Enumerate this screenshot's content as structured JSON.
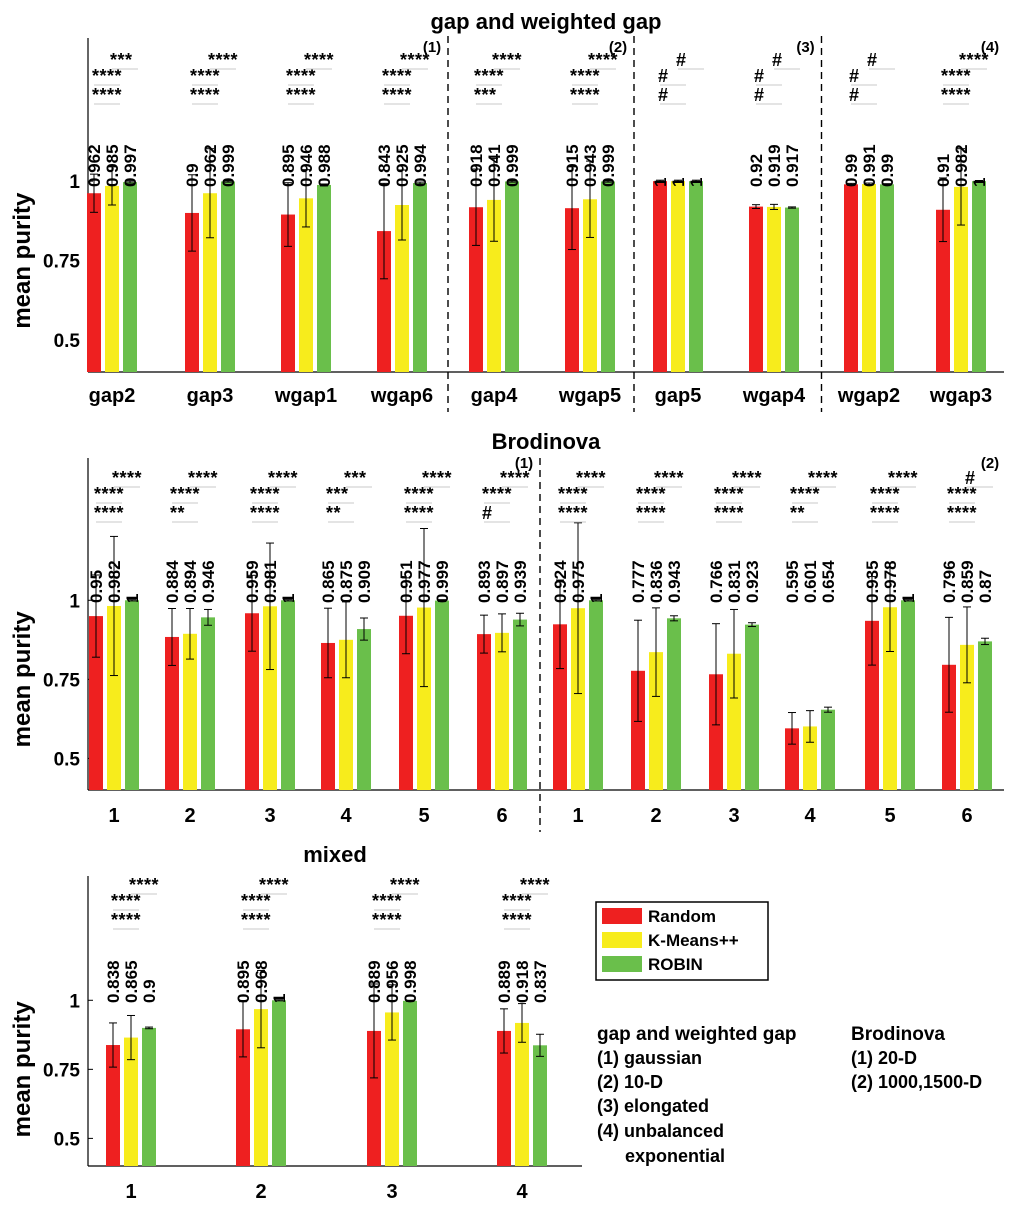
{
  "colors": {
    "random": "#ee2020",
    "kmeans": "#f7ec1c",
    "robin": "#6abf4b",
    "axis": "#000000",
    "sigline": "#c8c8c8"
  },
  "chart_data": [
    {
      "type": "bar",
      "title": "gap and weighted gap",
      "ylabel": "mean purity",
      "ylim": [
        0.4,
        1.45
      ],
      "yticks": [
        0.5,
        0.75,
        1
      ],
      "ytick_labels": [
        "0.5",
        "0.75",
        "1"
      ],
      "series_names": [
        "Random",
        "K-Means++",
        "ROBIN"
      ],
      "dividers_after": [
        3,
        5,
        7
      ],
      "group_labels": [
        "(1)",
        "(2)",
        "(3)",
        "(4)"
      ],
      "categories": [
        "gap2",
        "gap3",
        "wgap1",
        "wgap6",
        "gap4",
        "wgap5",
        "gap5",
        "wgap4",
        "wgap2",
        "wgap3"
      ],
      "values": [
        [
          0.962,
          0.985,
          0.997
        ],
        [
          0.9,
          0.962,
          0.999
        ],
        [
          0.895,
          0.946,
          0.988
        ],
        [
          0.843,
          0.925,
          0.994
        ],
        [
          0.918,
          0.941,
          0.999
        ],
        [
          0.915,
          0.943,
          0.999
        ],
        [
          1,
          1,
          1
        ],
        [
          0.92,
          0.919,
          0.917
        ],
        [
          0.99,
          0.991,
          0.99
        ],
        [
          0.91,
          0.982,
          1
        ]
      ],
      "labels": [
        [
          "0.962",
          "0.985",
          "0.997"
        ],
        [
          "0.9",
          "0.962",
          "0.999"
        ],
        [
          "0.895",
          "0.946",
          "0.988"
        ],
        [
          "0.843",
          "0.925",
          "0.994"
        ],
        [
          "0.918",
          "0.941",
          "0.999"
        ],
        [
          "0.915",
          "0.943",
          "0.999"
        ],
        [
          "1",
          "1",
          "1"
        ],
        [
          "0.92",
          "0.919",
          "0.917"
        ],
        [
          "0.99",
          "0.991",
          "0.99"
        ],
        [
          "0.91",
          "0.982",
          "1"
        ]
      ],
      "errors": [
        [
          0.06,
          0.06,
          0.003
        ],
        [
          0.12,
          0.14,
          0.002
        ],
        [
          0.1,
          0.09,
          0.003
        ],
        [
          0.15,
          0.11,
          0.003
        ],
        [
          0.12,
          0.13,
          0.002
        ],
        [
          0.13,
          0.12,
          0.002
        ],
        [
          0.003,
          0.003,
          0.003
        ],
        [
          0.006,
          0.008,
          0.002
        ],
        [
          0.003,
          0.003,
          0.002
        ],
        [
          0.1,
          0.12,
          0.002
        ]
      ],
      "significance": [
        [
          "****",
          "****",
          "***"
        ],
        [
          "****",
          "****",
          "****"
        ],
        [
          "****",
          "****",
          "****"
        ],
        [
          "****",
          "****",
          "****"
        ],
        [
          "***",
          "****",
          "****"
        ],
        [
          "****",
          "****",
          "****"
        ],
        [
          "#",
          "#",
          "#"
        ],
        [
          "#",
          "#",
          "#"
        ],
        [
          "#",
          "#",
          "#"
        ],
        [
          "****",
          "****",
          "****"
        ]
      ]
    },
    {
      "type": "bar",
      "title": "Brodinova",
      "ylabel": "mean purity",
      "ylim": [
        0.4,
        1.45
      ],
      "yticks": [
        0.5,
        0.75,
        1
      ],
      "ytick_labels": [
        "0.5",
        "0.75",
        "1"
      ],
      "series_names": [
        "Random",
        "K-Means++",
        "ROBIN"
      ],
      "dividers_after": [
        5
      ],
      "group_labels": [
        "(1)",
        "(2)"
      ],
      "categories": [
        "1",
        "2",
        "3",
        "4",
        "5",
        "6",
        "1",
        "2",
        "3",
        "4",
        "5",
        "6"
      ],
      "values": [
        [
          0.95,
          0.982,
          1
        ],
        [
          0.884,
          0.894,
          0.946
        ],
        [
          0.959,
          0.981,
          1
        ],
        [
          0.865,
          0.875,
          0.909
        ],
        [
          0.951,
          0.977,
          0.999
        ],
        [
          0.893,
          0.897,
          0.939
        ],
        [
          0.924,
          0.975,
          1
        ],
        [
          0.777,
          0.836,
          0.943
        ],
        [
          0.766,
          0.831,
          0.923
        ],
        [
          0.595,
          0.601,
          0.654
        ],
        [
          0.935,
          0.978,
          1
        ],
        [
          0.796,
          0.859,
          0.87
        ]
      ],
      "labels": [
        [
          "0.95",
          "0.982",
          "1"
        ],
        [
          "0.884",
          "0.894",
          "0.946"
        ],
        [
          "0.959",
          "0.981",
          "1"
        ],
        [
          "0.865",
          "0.875",
          "0.909"
        ],
        [
          "0.951",
          "0.977",
          "0.999"
        ],
        [
          "0.893",
          "0.897",
          "0.939"
        ],
        [
          "0.924",
          "0.975",
          "1"
        ],
        [
          "0.777",
          "0.836",
          "0.943"
        ],
        [
          "0.766",
          "0.831",
          "0.923"
        ],
        [
          "0.595",
          "0.601",
          "0.654"
        ],
        [
          "0.935",
          "0.978",
          "1"
        ],
        [
          "0.796",
          "0.859",
          "0.87"
        ]
      ],
      "errors": [
        [
          0.13,
          0.22,
          0.002
        ],
        [
          0.09,
          0.08,
          0.025
        ],
        [
          0.12,
          0.2,
          0.002
        ],
        [
          0.11,
          0.12,
          0.035
        ],
        [
          0.12,
          0.25,
          0.003
        ],
        [
          0.06,
          0.06,
          0.02
        ],
        [
          0.14,
          0.27,
          0.002
        ],
        [
          0.16,
          0.14,
          0.008
        ],
        [
          0.16,
          0.14,
          0.006
        ],
        [
          0.05,
          0.05,
          0.008
        ],
        [
          0.14,
          0.14,
          0.002
        ],
        [
          0.15,
          0.12,
          0.01
        ]
      ],
      "significance": [
        [
          "****",
          "****",
          "****"
        ],
        [
          "**",
          "****",
          "****"
        ],
        [
          "****",
          "****",
          "****"
        ],
        [
          "**",
          "***",
          "***"
        ],
        [
          "****",
          "****",
          "****"
        ],
        [
          "#",
          "****",
          "****"
        ],
        [
          "****",
          "****",
          "****"
        ],
        [
          "****",
          "****",
          "****"
        ],
        [
          "****",
          "****",
          "****"
        ],
        [
          "**",
          "****",
          "****"
        ],
        [
          "****",
          "****",
          "****"
        ],
        [
          "****",
          "****",
          "#"
        ]
      ]
    },
    {
      "type": "bar",
      "title": "mixed",
      "ylabel": "mean purity",
      "ylim": [
        0.4,
        1.45
      ],
      "yticks": [
        0.5,
        0.75,
        1
      ],
      "ytick_labels": [
        "0.5",
        "0.75",
        "1"
      ],
      "series_names": [
        "Random",
        "K-Means++",
        "ROBIN"
      ],
      "dividers_after": [],
      "group_labels": [],
      "categories": [
        "1",
        "2",
        "3",
        "4"
      ],
      "values": [
        [
          0.838,
          0.865,
          0.9
        ],
        [
          0.895,
          0.968,
          1
        ],
        [
          0.889,
          0.956,
          0.998
        ],
        [
          0.889,
          0.918,
          0.837
        ]
      ],
      "labels": [
        [
          "0.838",
          "0.865",
          "0.9"
        ],
        [
          "0.895",
          "0.968",
          "1"
        ],
        [
          "0.889",
          "0.956",
          "0.998"
        ],
        [
          "0.889",
          "0.918",
          "0.837"
        ]
      ],
      "errors": [
        [
          0.08,
          0.08,
          0.003
        ],
        [
          0.1,
          0.14,
          0.002
        ],
        [
          0.17,
          0.1,
          0.002
        ],
        [
          0.08,
          0.07,
          0.04
        ]
      ],
      "significance": [
        [
          "****",
          "****",
          "****"
        ],
        [
          "****",
          "****",
          "****"
        ],
        [
          "****",
          "****",
          "****"
        ],
        [
          "****",
          "****",
          "****"
        ]
      ]
    }
  ],
  "legend": {
    "items": [
      {
        "label": "Random",
        "color_key": "random"
      },
      {
        "label": "K-Means++",
        "color_key": "kmeans"
      },
      {
        "label": "ROBIN",
        "color_key": "robin"
      }
    ]
  },
  "notes": {
    "gap": {
      "title": "gap and weighted gap",
      "lines": [
        "(1) gaussian",
        "(2) 10-D",
        "(3) elongated",
        "(4) unbalanced",
        "exponential"
      ]
    },
    "brod": {
      "title": "Brodinova",
      "lines": [
        "(1) 20-D",
        "(2) 1000,1500-D"
      ]
    }
  }
}
